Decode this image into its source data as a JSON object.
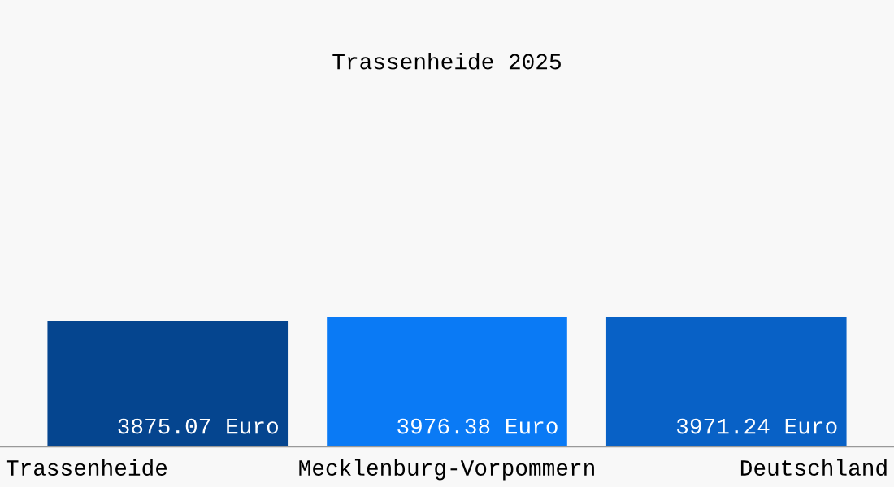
{
  "chart_data": {
    "type": "bar",
    "title": "Trassenheide 2025",
    "categories": [
      "Trassenheide",
      "Mecklenburg-Vorpommern",
      "Deutschland"
    ],
    "values": [
      3875.07,
      3976.38,
      3971.24
    ],
    "colors": [
      "#05458f",
      "#0a7af5",
      "#0861c6"
    ],
    "value_labels": [
      "3875.07 Euro",
      "3976.38 Euro",
      "3971.24 Euro"
    ],
    "tick_labels": "x"
  }
}
